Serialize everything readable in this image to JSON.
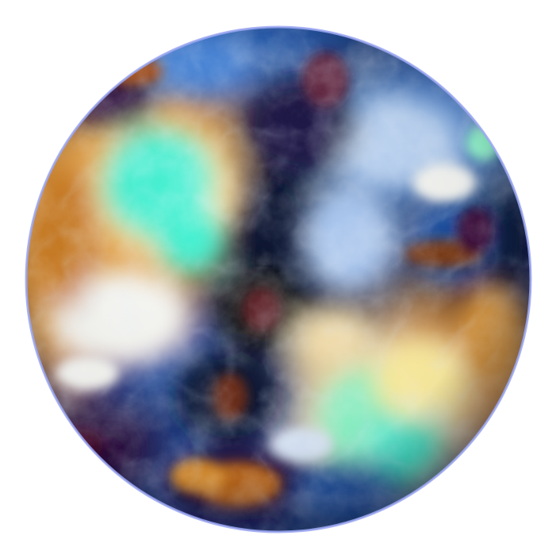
{
  "image": {
    "subject": "planet-sphere",
    "background_color": "#ffffff",
    "rim_color": "#9aa6f2",
    "palette": {
      "deep_navy": "#0b1230",
      "dark_purple": "#2a0a3a",
      "blue": "#1f4fa0",
      "bright_blue": "#3f7fd6",
      "pale_blue": "#a9c6ee",
      "white": "#f5f6f2",
      "cream": "#f2dca8",
      "orange": "#d68a2c",
      "brown": "#7a3b12",
      "rust": "#a04a18",
      "cyan": "#46f0d2",
      "mint": "#8ff5c8",
      "yellow_cream": "#fff0a0",
      "black": "#07070a"
    }
  }
}
